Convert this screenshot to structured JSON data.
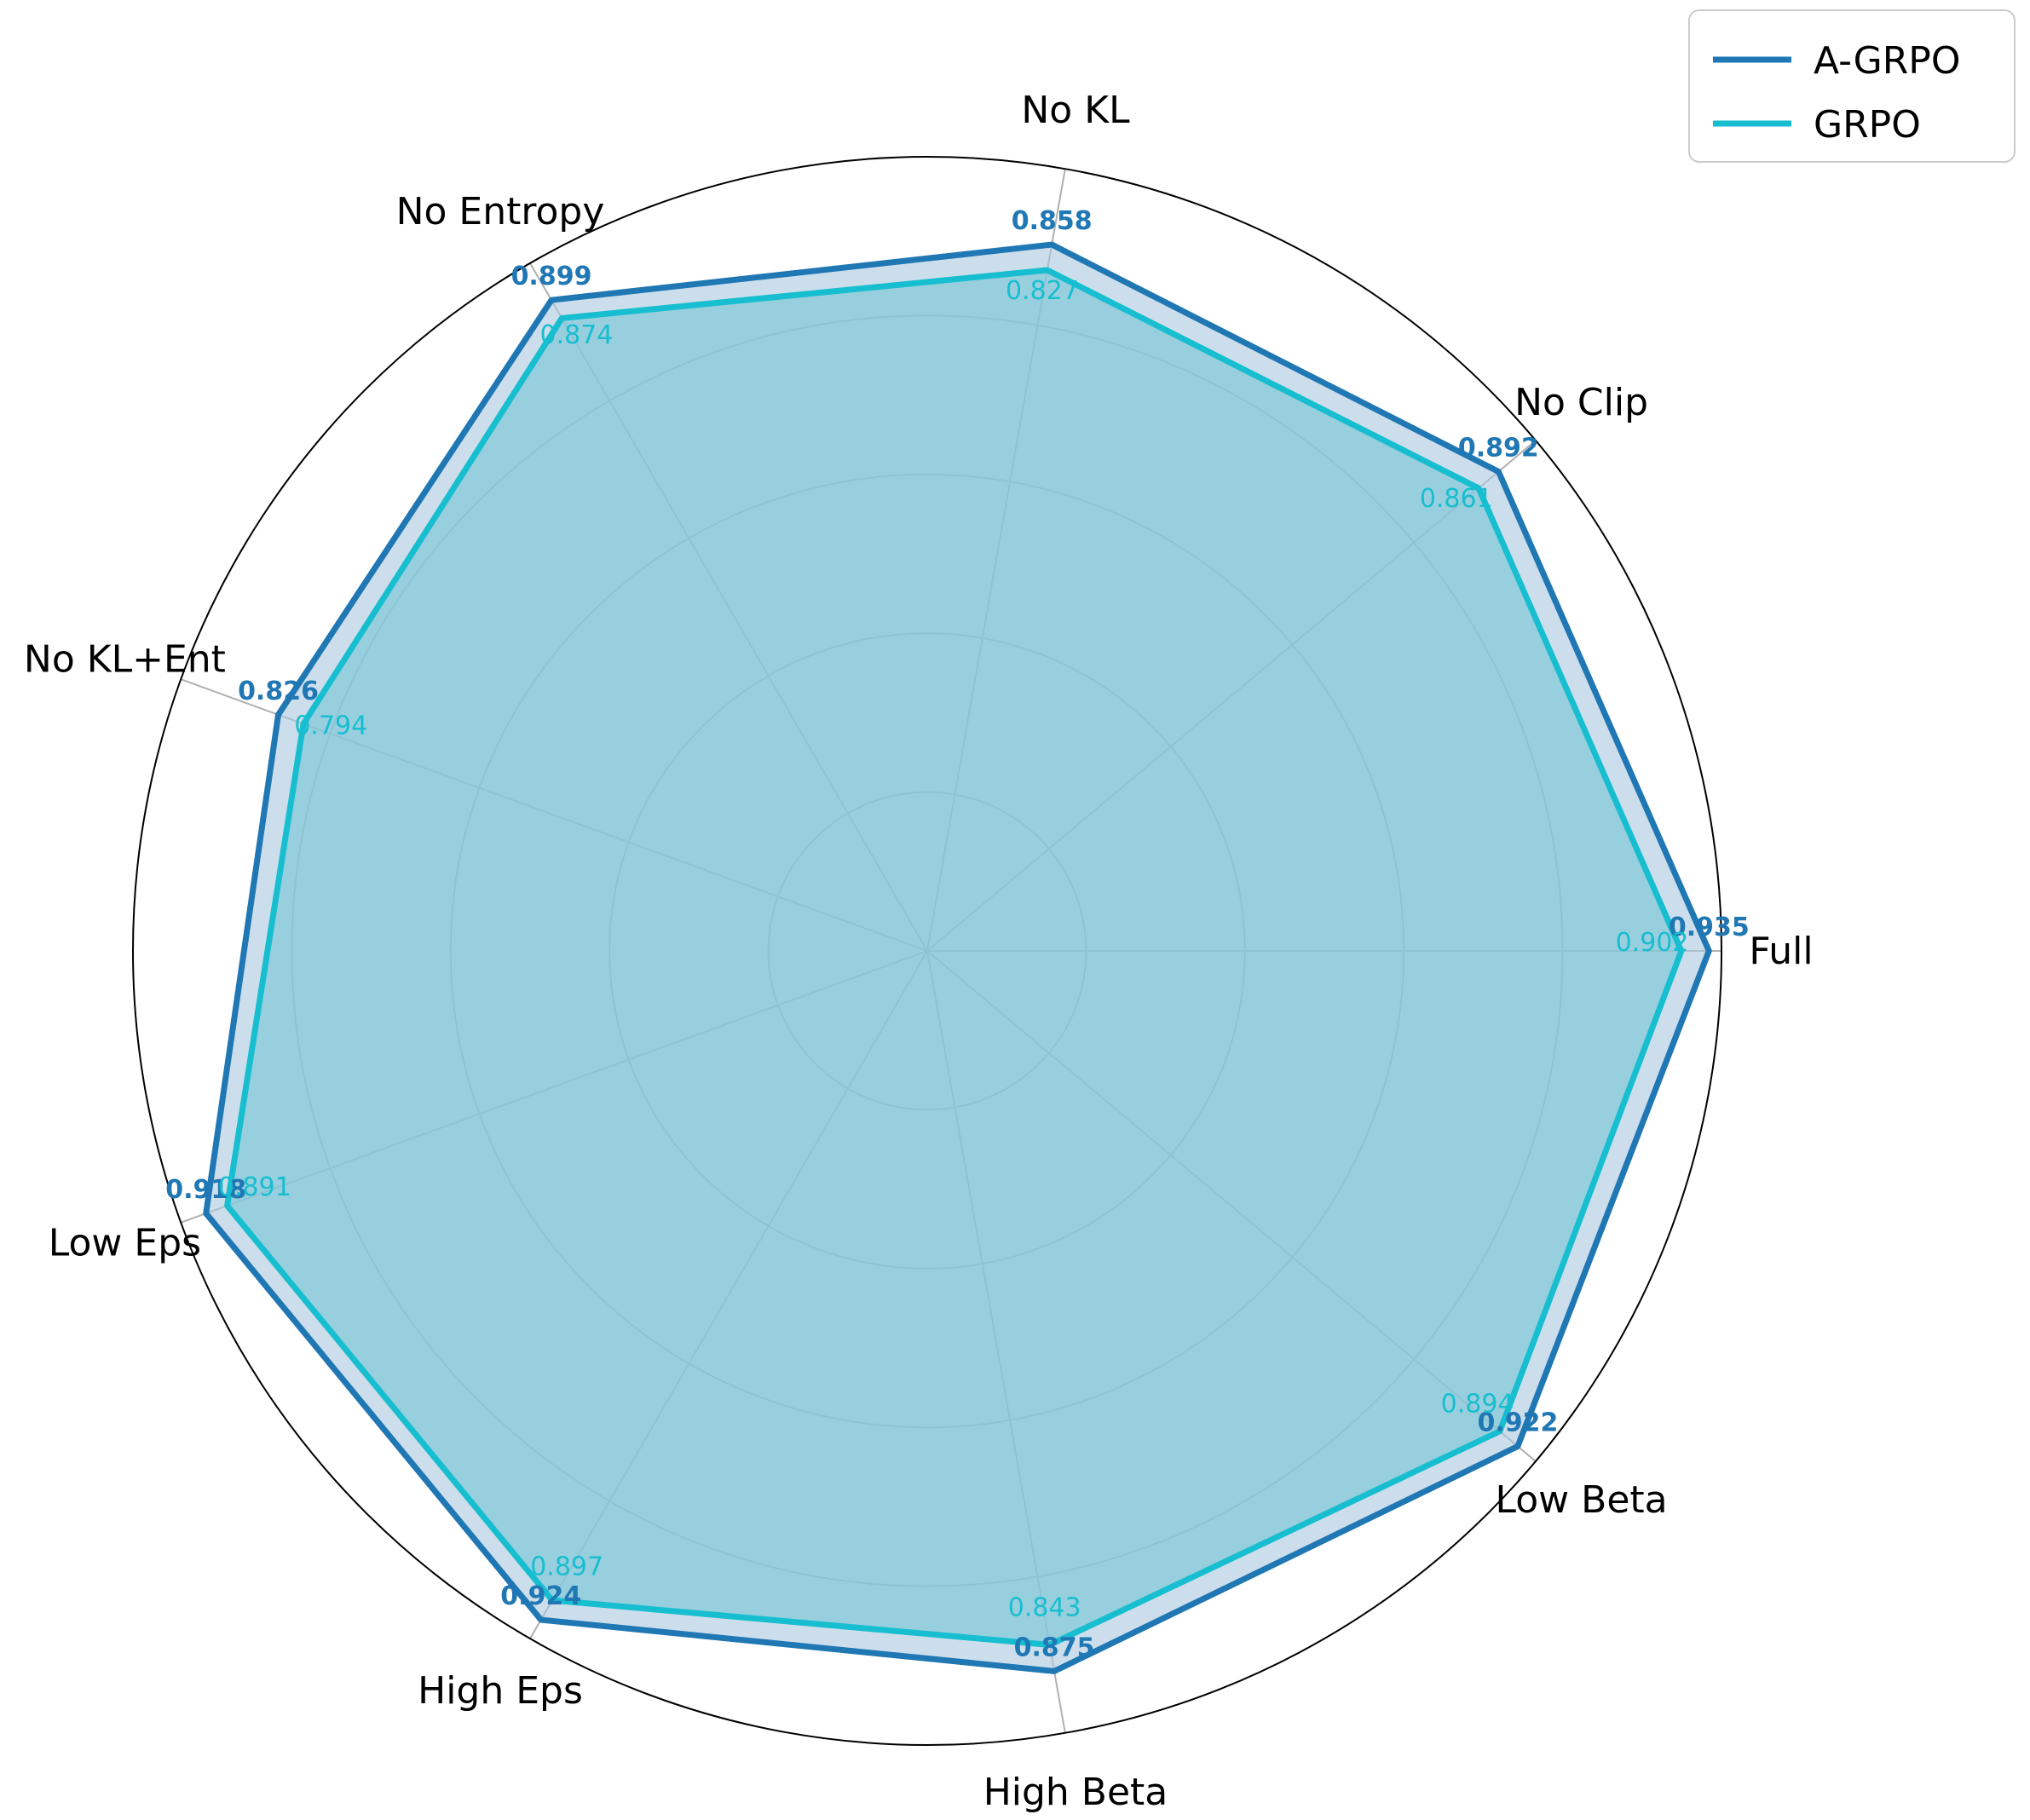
{
  "chart_data": {
    "type": "radar",
    "title": "",
    "categories": [
      "Full",
      "No Clip",
      "No KL",
      "No Entropy",
      "No KL+Ent",
      "Low Eps",
      "High Eps",
      "High Beta",
      "Low Beta"
    ],
    "series": [
      {
        "name": "A-GRPO",
        "color": "#1f77b4",
        "values": [
          0.935,
          0.892,
          0.858,
          0.899,
          0.826,
          0.918,
          0.924,
          0.875,
          0.922
        ]
      },
      {
        "name": "GRPO",
        "color": "#17becf",
        "values": [
          0.902,
          0.861,
          0.827,
          0.874,
          0.794,
          0.891,
          0.897,
          0.843,
          0.894
        ]
      }
    ],
    "value_labels": {
      "A-GRPO": [
        "0.935",
        "0.892",
        "0.858",
        "0.899",
        "0.826",
        "0.918",
        "0.924",
        "0.875",
        "0.922"
      ],
      "GRPO": [
        "0.902",
        "0.861",
        "0.827",
        "0.874",
        "0.794",
        "0.891",
        "0.897",
        "0.843",
        "0.894"
      ]
    },
    "radial_range": [
      0,
      0.95
    ],
    "grid": true,
    "legend": "top-right"
  }
}
